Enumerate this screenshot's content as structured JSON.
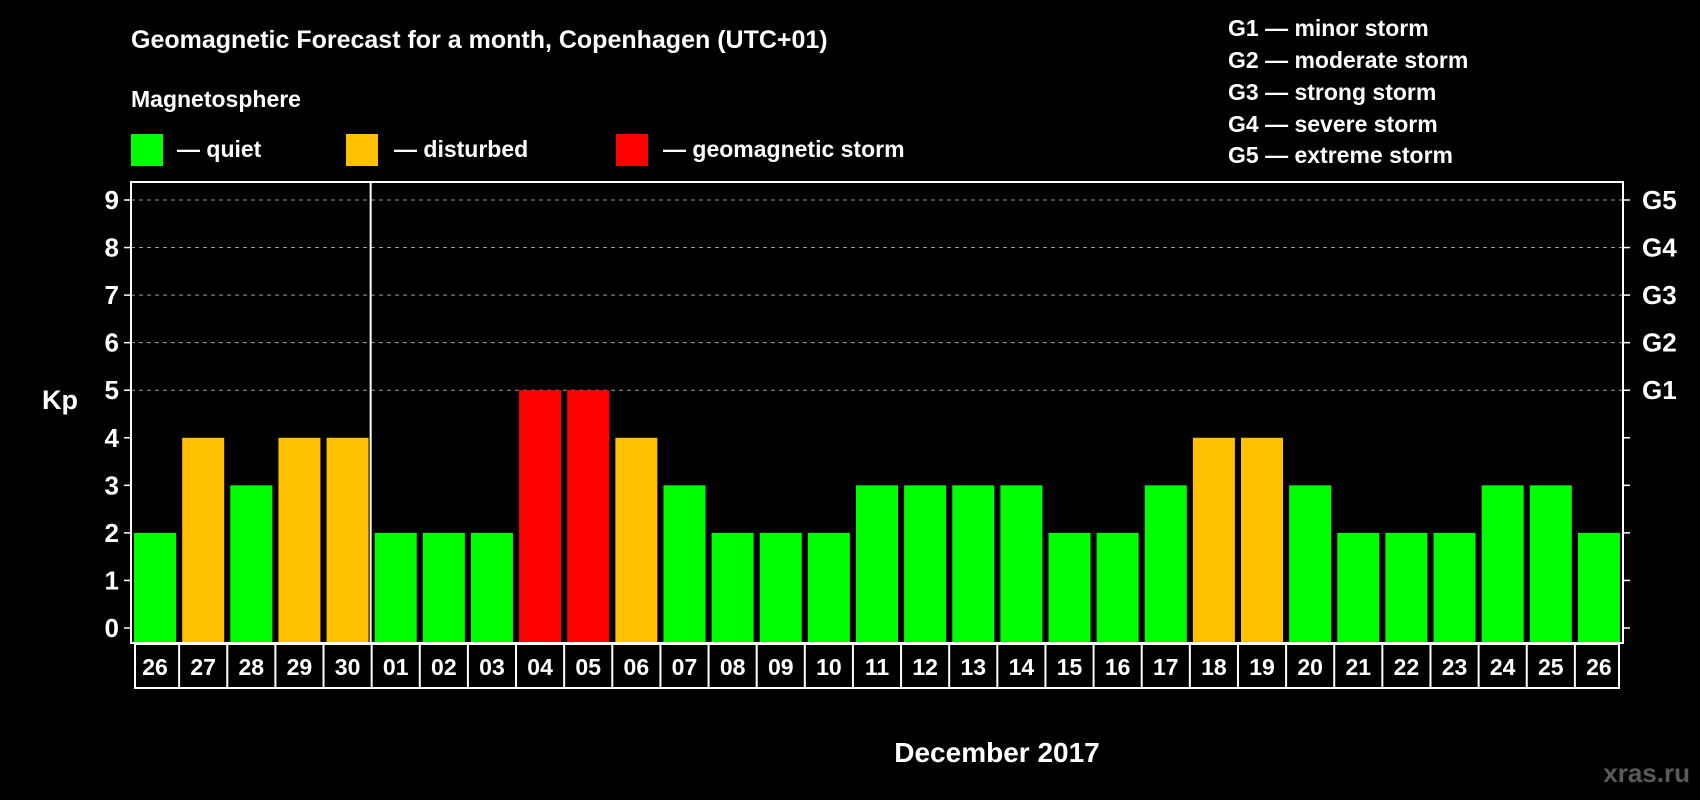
{
  "chart_data": {
    "type": "bar",
    "title": "Geomagnetic Forecast for a month, Copenhagen (UTC+01)",
    "subtitle": "Magnetosphere",
    "xlabel": "December 2017",
    "ylabel": "Kp",
    "ylim": [
      0,
      9
    ],
    "yticks": [
      "0",
      "1",
      "2",
      "3",
      "4",
      "5",
      "6",
      "7",
      "8",
      "9"
    ],
    "right_ticks": [
      {
        "kp": 5,
        "label": "G1"
      },
      {
        "kp": 6,
        "label": "G2"
      },
      {
        "kp": 7,
        "label": "G3"
      },
      {
        "kp": 8,
        "label": "G4"
      },
      {
        "kp": 9,
        "label": "G5"
      }
    ],
    "categories": [
      "26",
      "27",
      "28",
      "29",
      "30",
      "01",
      "02",
      "03",
      "04",
      "05",
      "06",
      "07",
      "08",
      "09",
      "10",
      "11",
      "12",
      "13",
      "14",
      "15",
      "16",
      "17",
      "18",
      "19",
      "20",
      "21",
      "22",
      "23",
      "24",
      "25",
      "26"
    ],
    "values": [
      2,
      4,
      3,
      4,
      4,
      2,
      2,
      2,
      5,
      5,
      4,
      3,
      2,
      2,
      2,
      3,
      3,
      3,
      3,
      2,
      2,
      3,
      4,
      4,
      3,
      2,
      2,
      2,
      3,
      3,
      2
    ],
    "month_separator_after_index": 4,
    "grid": "dashed at 5-9",
    "legend": [
      {
        "label": "— quiet",
        "color": "#00ff00"
      },
      {
        "label": "— disturbed",
        "color": "#ffc000"
      },
      {
        "label": "— geomagnetic storm",
        "color": "#ff0000"
      }
    ],
    "storm_scale": [
      "G1 — minor storm",
      "G2 — moderate storm",
      "G3 — strong storm",
      "G4 — severe storm",
      "G5 — extreme storm"
    ]
  },
  "watermark": "xras.ru"
}
